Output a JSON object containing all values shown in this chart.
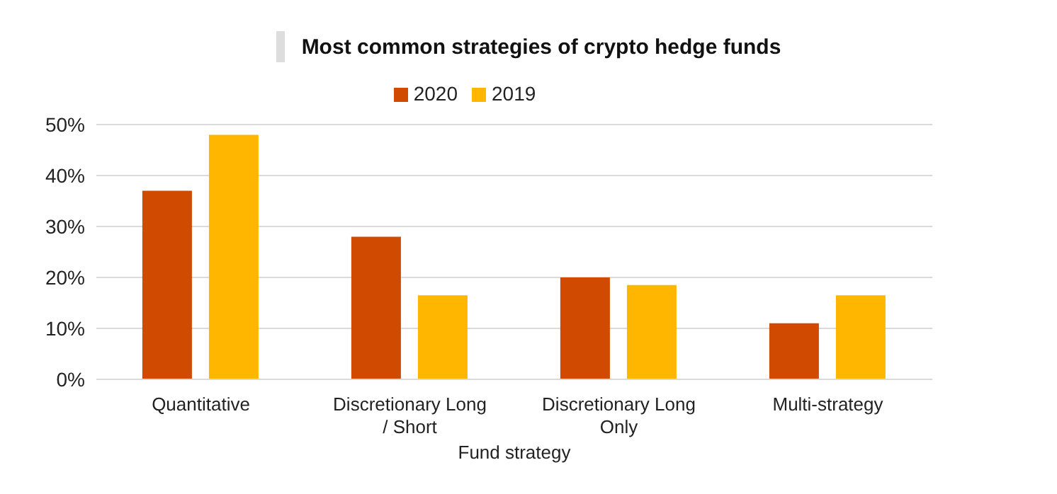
{
  "chart_data": {
    "type": "bar",
    "title": "Most common strategies of crypto hedge funds",
    "xlabel": "Fund strategy",
    "categories": [
      "Quantitative",
      "Discretionary Long / Short",
      "Discretionary Long Only",
      "Multi-strategy"
    ],
    "series": [
      {
        "name": "2020",
        "color": "#d04a02",
        "values": [
          37,
          28,
          20,
          11
        ]
      },
      {
        "name": "2019",
        "color": "#ffb600",
        "values": [
          48,
          16.5,
          18.5,
          16.5
        ]
      }
    ],
    "ylim": [
      0,
      50
    ],
    "yticks": [
      {
        "value": 0,
        "label": "0%"
      },
      {
        "value": 10,
        "label": "10%"
      },
      {
        "value": 20,
        "label": "20%"
      },
      {
        "value": 30,
        "label": "30%"
      },
      {
        "value": 40,
        "label": "40%"
      },
      {
        "value": 50,
        "label": "50%"
      }
    ],
    "grid": "y",
    "legend": "top"
  }
}
